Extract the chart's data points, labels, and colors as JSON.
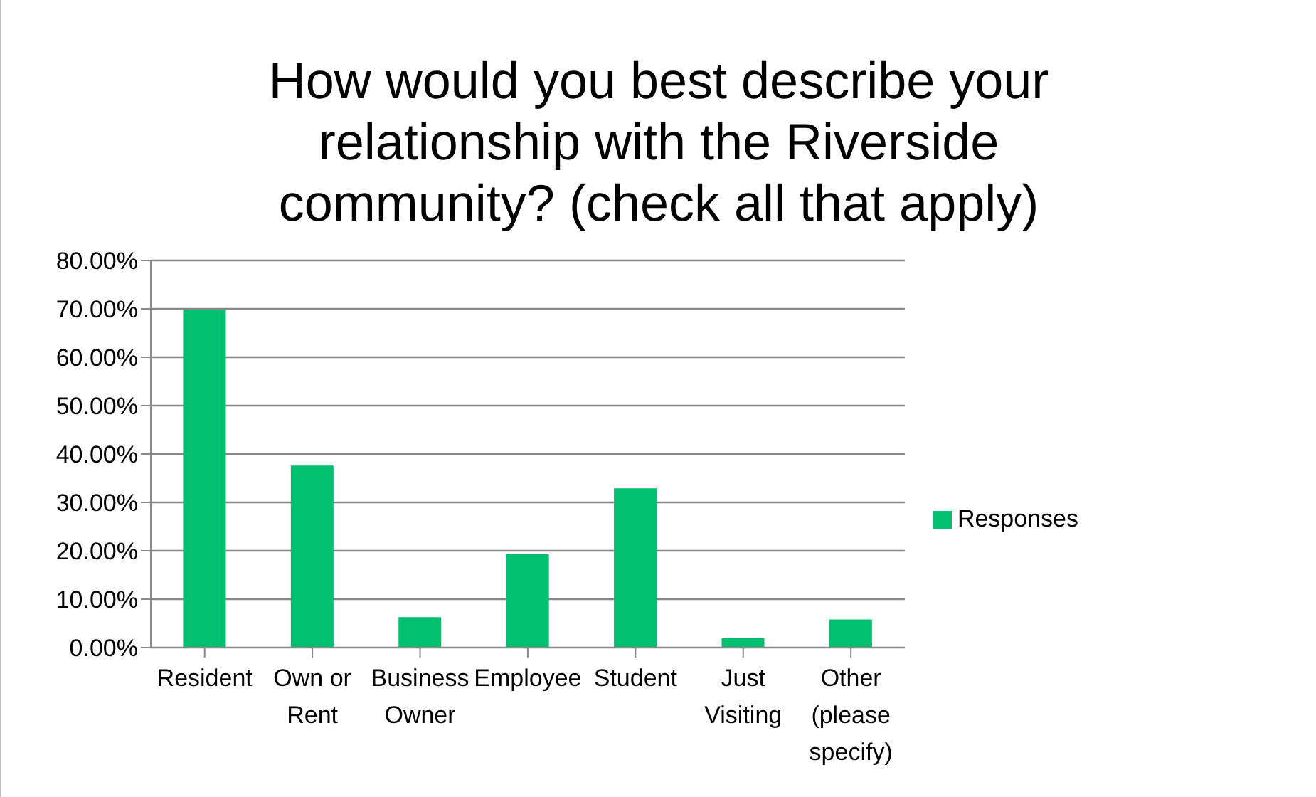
{
  "chart_data": {
    "type": "bar",
    "title": "How would you best describe your relationship with the Riverside community? (check all that apply)",
    "categories": [
      "Resident",
      "Own or Rent",
      "Business Owner",
      "Employee",
      "Student",
      "Just Visiting",
      "Other (please specify)"
    ],
    "series": [
      {
        "name": "Responses",
        "color": "#00bf6f",
        "values": [
          69.8,
          37.6,
          6.3,
          19.3,
          32.9,
          1.9,
          5.8
        ]
      }
    ],
    "ylim": [
      0,
      80
    ],
    "yticks": [
      {
        "value": 0,
        "label": "0.00%"
      },
      {
        "value": 10,
        "label": "10.00%"
      },
      {
        "value": 20,
        "label": "20.00%"
      },
      {
        "value": 30,
        "label": "30.00%"
      },
      {
        "value": 40,
        "label": "40.00%"
      },
      {
        "value": 50,
        "label": "50.00%"
      },
      {
        "value": 60,
        "label": "60.00%"
      },
      {
        "value": 70,
        "label": "70.00%"
      },
      {
        "value": 80,
        "label": "80.00%"
      }
    ],
    "grid": "y",
    "legend": "right"
  }
}
